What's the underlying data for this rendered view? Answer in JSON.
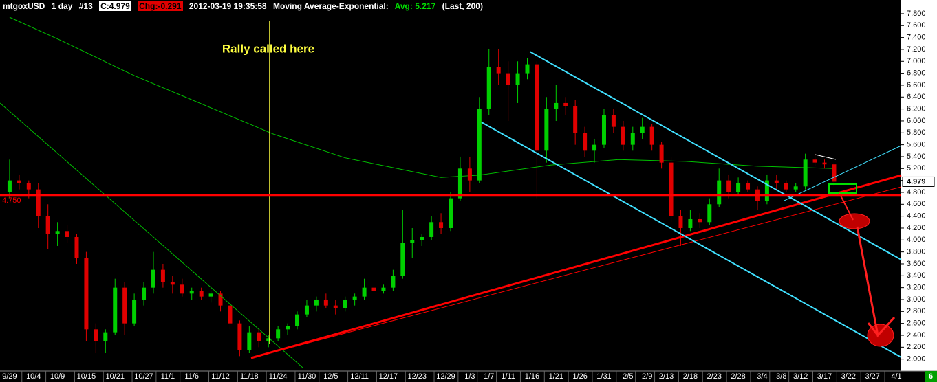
{
  "chart_data": {
    "type": "candlestick",
    "header": {
      "symbol": "mtgoxUSD",
      "interval": "1 day",
      "number": "#13",
      "close_label": "C:4.979",
      "change_label": "Chg:-0.291",
      "timestamp": "2012-03-19 19:35:58",
      "study": "Moving Average-Exponential:",
      "avg_label": "Avg: 5.217",
      "params": "(Last, 200)"
    },
    "annotation": "Rally called here",
    "up_color": "#00d000",
    "down_color": "#e00000",
    "x": [
      "9/29",
      "10/1",
      "10/3",
      "10/5",
      "10/7",
      "10/9",
      "10/11",
      "10/13",
      "10/15",
      "10/17",
      "10/19",
      "10/21",
      "10/23",
      "10/25",
      "10/27",
      "10/29",
      "10/31",
      "11/2",
      "11/4",
      "11/6",
      "11/8",
      "11/10",
      "11/12",
      "11/14",
      "11/16",
      "11/18",
      "11/20",
      "11/22",
      "11/24",
      "11/26",
      "11/28",
      "11/30",
      "12/2",
      "12/4",
      "12/6",
      "12/8",
      "12/10",
      "12/12",
      "12/14",
      "12/16",
      "12/18",
      "12/20",
      "12/22",
      "12/24",
      "12/26",
      "12/28",
      "12/30",
      "1/1",
      "1/3",
      "1/5",
      "1/7",
      "1/9",
      "1/11",
      "1/13",
      "1/15",
      "1/17",
      "1/19",
      "1/21",
      "1/23",
      "1/25",
      "1/27",
      "1/29",
      "1/31",
      "2/2",
      "2/4",
      "2/6",
      "2/8",
      "2/10",
      "2/12",
      "2/14",
      "2/16",
      "2/18",
      "2/20",
      "2/22",
      "2/24",
      "2/26",
      "2/28",
      "3/1",
      "3/3",
      "3/5",
      "3/7",
      "3/9",
      "3/11",
      "3/13",
      "3/15",
      "3/17",
      "3/19"
    ],
    "open": [
      4.8,
      5.0,
      4.95,
      4.85,
      4.4,
      4.1,
      4.15,
      4.05,
      3.7,
      2.5,
      2.3,
      2.45,
      3.2,
      2.6,
      3.0,
      3.2,
      3.5,
      3.3,
      3.25,
      3.1,
      3.15,
      3.05,
      3.1,
      2.9,
      2.6,
      2.15,
      2.45,
      2.3,
      2.35,
      2.5,
      2.55,
      2.75,
      2.9,
      3.0,
      2.9,
      2.85,
      3.0,
      3.05,
      3.2,
      3.15,
      3.2,
      3.4,
      3.95,
      4.0,
      4.05,
      4.3,
      4.2,
      4.7,
      5.2,
      5.0,
      6.2,
      6.9,
      6.8,
      6.6,
      6.8,
      6.95,
      5.5,
      6.2,
      6.3,
      6.25,
      5.8,
      5.5,
      5.6,
      6.1,
      5.9,
      5.6,
      5.8,
      5.9,
      5.6,
      5.3,
      4.4,
      4.2,
      4.35,
      4.3,
      4.6,
      5.0,
      4.8,
      4.95,
      4.85,
      4.65,
      5.0,
      4.95,
      4.85,
      4.9,
      5.35,
      5.3,
      5.27
    ],
    "high": [
      5.35,
      5.1,
      5.0,
      4.95,
      4.6,
      4.3,
      4.25,
      4.1,
      3.8,
      2.6,
      2.5,
      3.35,
      3.3,
      3.1,
      3.3,
      3.8,
      3.6,
      3.4,
      3.35,
      3.2,
      3.2,
      3.15,
      3.15,
      3.05,
      2.65,
      2.55,
      2.5,
      2.4,
      2.55,
      2.6,
      2.8,
      3.0,
      3.05,
      3.1,
      3.0,
      3.05,
      3.1,
      3.35,
      3.25,
      3.25,
      3.5,
      4.5,
      4.2,
      4.1,
      4.4,
      4.45,
      4.8,
      5.4,
      5.4,
      6.4,
      7.2,
      7.2,
      7.0,
      7.0,
      7.05,
      7.0,
      6.4,
      6.6,
      6.4,
      6.35,
      5.9,
      5.7,
      6.2,
      6.2,
      6.0,
      5.9,
      6.05,
      5.95,
      5.65,
      5.4,
      4.5,
      4.5,
      4.45,
      4.7,
      5.2,
      5.1,
      5.05,
      5.0,
      4.9,
      5.1,
      5.1,
      5.0,
      4.95,
      5.45,
      5.45,
      5.35,
      5.3
    ],
    "low": [
      4.7,
      4.85,
      4.7,
      4.2,
      3.85,
      3.9,
      3.95,
      3.6,
      2.3,
      2.1,
      2.1,
      2.4,
      2.4,
      2.55,
      2.9,
      3.1,
      3.2,
      3.1,
      3.05,
      3.0,
      3.0,
      2.95,
      2.8,
      2.5,
      2.05,
      2.1,
      2.2,
      2.2,
      2.3,
      2.4,
      2.5,
      2.7,
      2.8,
      2.85,
      2.75,
      2.8,
      2.9,
      3.0,
      3.1,
      3.1,
      3.15,
      3.35,
      3.7,
      3.9,
      4.0,
      4.1,
      4.15,
      4.65,
      4.8,
      4.95,
      6.1,
      6.6,
      6.0,
      6.3,
      6.7,
      4.7,
      5.3,
      6.0,
      6.1,
      5.6,
      5.4,
      5.3,
      5.55,
      5.8,
      5.5,
      5.5,
      5.7,
      5.5,
      5.2,
      4.3,
      3.9,
      4.15,
      4.2,
      4.25,
      4.55,
      4.7,
      4.75,
      4.8,
      4.5,
      4.6,
      4.85,
      4.8,
      4.8,
      4.85,
      5.25,
      5.2,
      4.9
    ],
    "close": [
      5.0,
      4.95,
      4.85,
      4.4,
      4.1,
      4.15,
      4.05,
      3.7,
      2.5,
      2.3,
      2.45,
      3.2,
      2.6,
      3.0,
      3.2,
      3.5,
      3.3,
      3.25,
      3.1,
      3.15,
      3.05,
      3.1,
      2.9,
      2.6,
      2.15,
      2.45,
      2.3,
      2.35,
      2.5,
      2.55,
      2.75,
      2.9,
      3.0,
      2.9,
      2.85,
      3.0,
      3.05,
      3.2,
      3.15,
      3.2,
      3.4,
      3.95,
      4.0,
      4.05,
      4.3,
      4.2,
      4.7,
      5.2,
      5.0,
      6.2,
      6.9,
      6.8,
      6.6,
      6.8,
      6.95,
      5.5,
      6.2,
      6.3,
      6.25,
      5.8,
      5.5,
      5.6,
      6.1,
      5.9,
      5.6,
      5.8,
      5.9,
      5.6,
      5.3,
      4.4,
      4.2,
      4.35,
      4.3,
      4.6,
      5.0,
      4.8,
      4.95,
      4.85,
      4.65,
      5.0,
      4.95,
      4.85,
      4.9,
      5.35,
      5.3,
      5.27,
      4.979
    ],
    "ema": {
      "color": "#00c000",
      "x": [
        "9/29",
        "10/10",
        "10/25",
        "11/23",
        "12/8",
        "12/28",
        "1/5",
        "1/20",
        "2/3",
        "2/17",
        "3/3",
        "3/19"
      ],
      "values": [
        7.74,
        7.34,
        6.76,
        5.78,
        5.38,
        5.05,
        5.09,
        5.26,
        5.35,
        5.32,
        5.24,
        5.2
      ]
    },
    "hline": {
      "value": 4.75,
      "label": "4.750",
      "color": "#ff0000"
    },
    "last": {
      "value": 4.979,
      "label": "4.979"
    },
    "corner_label": "6",
    "xlim": [
      "9/27",
      "4/2"
    ],
    "xticks": [
      "9/29",
      "10/4",
      "10/9",
      "10/15",
      "10/21",
      "10/27",
      "11/1",
      "11/6",
      "11/12",
      "11/18",
      "11/24",
      "11/30",
      "12/5",
      "12/11",
      "12/17",
      "12/23",
      "12/29",
      "1/3",
      "1/7",
      "1/11",
      "1/16",
      "1/21",
      "1/26",
      "1/31",
      "2/5",
      "2/9",
      "2/13",
      "2/18",
      "2/23",
      "2/28",
      "3/4",
      "3/8",
      "3/12",
      "3/17",
      "3/22",
      "3/27",
      "4/1"
    ],
    "ylim": [
      1.8,
      8.03
    ],
    "yticks": [
      {
        "value": 2.0,
        "label": "2.000"
      },
      {
        "value": 2.2,
        "label": "2.200"
      },
      {
        "value": 2.4,
        "label": "2.400"
      },
      {
        "value": 2.6,
        "label": "2.600"
      },
      {
        "value": 2.8,
        "label": "2.800"
      },
      {
        "value": 3.0,
        "label": "3.000"
      },
      {
        "value": 3.2,
        "label": "3.200"
      },
      {
        "value": 3.4,
        "label": "3.400"
      },
      {
        "value": 3.6,
        "label": "3.600"
      },
      {
        "value": 3.8,
        "label": "3.800"
      },
      {
        "value": 4.0,
        "label": "4.000"
      },
      {
        "value": 4.2,
        "label": "4.200"
      },
      {
        "value": 4.4,
        "label": "4.400"
      },
      {
        "value": 4.6,
        "label": "4.600"
      },
      {
        "value": 4.8,
        "label": "4.800"
      },
      {
        "value": 5.0,
        "label": "5.000"
      },
      {
        "value": 5.2,
        "label": "5.200"
      },
      {
        "value": 5.4,
        "label": "5.400"
      },
      {
        "value": 5.6,
        "label": "5.600"
      },
      {
        "value": 5.8,
        "label": "5.800"
      },
      {
        "value": 6.0,
        "label": "6.000"
      },
      {
        "value": 6.2,
        "label": "6.200"
      },
      {
        "value": 6.4,
        "label": "6.400"
      },
      {
        "value": 6.6,
        "label": "6.600"
      },
      {
        "value": 6.8,
        "label": "6.800"
      },
      {
        "value": 7.0,
        "label": "7.000"
      },
      {
        "value": 7.2,
        "label": "7.200"
      },
      {
        "value": 7.4,
        "label": "7.400"
      },
      {
        "value": 7.6,
        "label": "7.600"
      },
      {
        "value": 7.8,
        "label": "7.800"
      }
    ]
  }
}
